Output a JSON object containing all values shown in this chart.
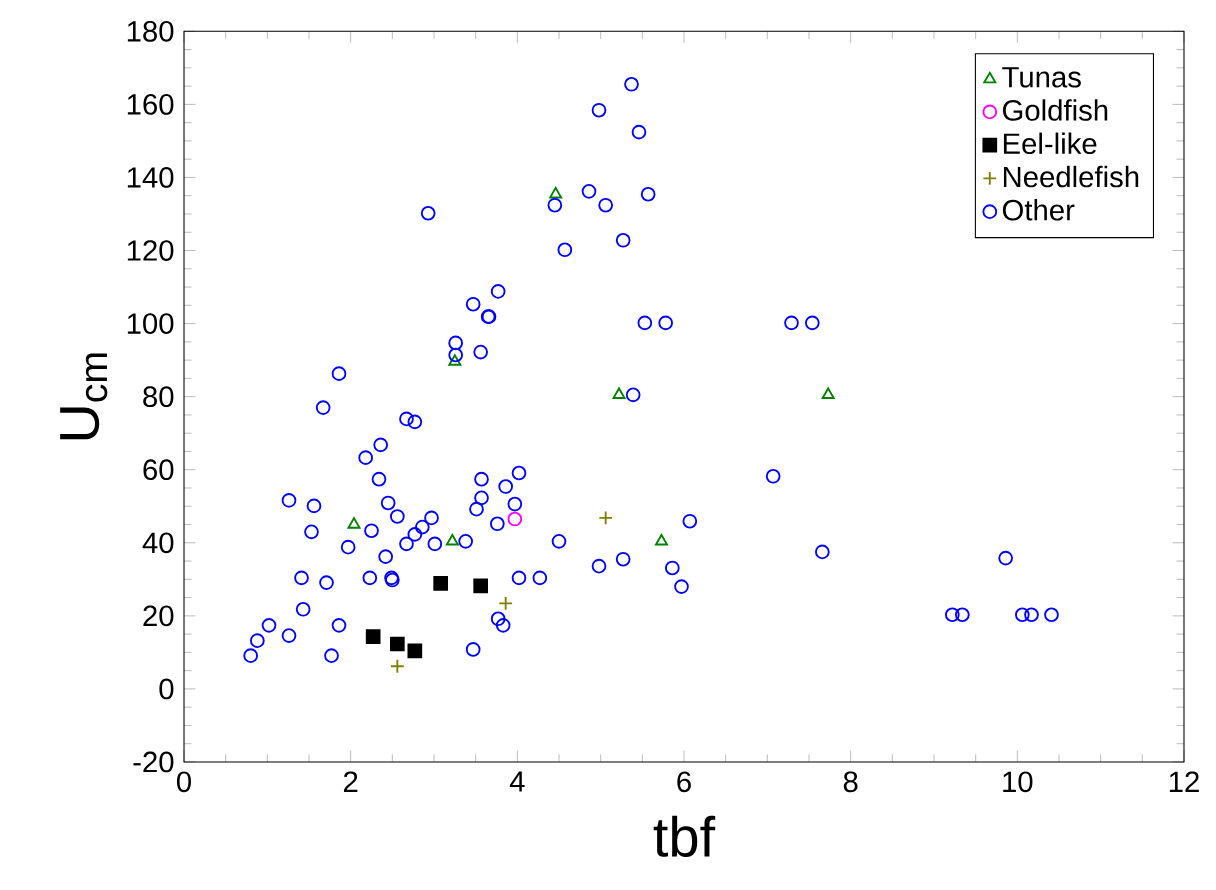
{
  "chart_data": {
    "type": "scatter",
    "xlabel": "tbf",
    "ylabel": "U$_{cm}$",
    "xlim": [
      0,
      12
    ],
    "ylim": [
      -20,
      180
    ],
    "xticks": [
      0,
      2,
      4,
      6,
      8,
      10,
      12
    ],
    "yticks": [
      -20,
      0,
      20,
      40,
      60,
      80,
      100,
      120,
      140,
      160,
      180
    ],
    "grid": false,
    "legend": "top right",
    "series": [
      {
        "name": "Tunas",
        "color": "#008000",
        "marker": "triangle",
        "x": [
          3.25,
          4.46,
          2.04,
          3.22,
          5.22,
          7.73,
          5.73
        ],
        "values": [
          89.6,
          135.4,
          45.0,
          40.4,
          80.5,
          80.5,
          40.4
        ]
      },
      {
        "name": "Goldfish",
        "color": "#ff00ff",
        "marker": "circle",
        "x": [
          3.97
        ],
        "values": [
          46.5
        ]
      },
      {
        "name": "Eel-like",
        "color": "#000000",
        "marker": "square",
        "x": [
          3.08,
          3.56,
          2.27,
          2.56,
          2.77
        ],
        "values": [
          28.9,
          28.2,
          14.3,
          12.3,
          10.4
        ]
      },
      {
        "name": "Needlefish",
        "color": "#808000",
        "marker": "cross",
        "x": [
          3.86,
          2.56,
          5.06
        ],
        "values": [
          23.4,
          6.2,
          46.8
        ]
      },
      {
        "name": "Other",
        "color": "#0000ff",
        "marker": "circle",
        "x": [
          3.26,
          3.26,
          3.56,
          3.66,
          2.93,
          4.45,
          3.47,
          3.77,
          3.65,
          1.86,
          1.67,
          2.67,
          2.77,
          2.36,
          2.18,
          2.34,
          3.57,
          4.02,
          3.86,
          3.57,
          3.51,
          3.97,
          3.76,
          1.26,
          1.56,
          2.45,
          2.56,
          2.25,
          1.53,
          2.97,
          2.86,
          2.77,
          2.67,
          3.01,
          3.38,
          4.5,
          1.97,
          2.42,
          1.41,
          1.71,
          2.23,
          2.49,
          2.5,
          4.02,
          4.27,
          1.43,
          3.77,
          3.83,
          1.02,
          0.88,
          1.26,
          1.86,
          0.8,
          1.77,
          3.47,
          5.37,
          4.98,
          5.46,
          4.86,
          5.06,
          5.57,
          4.57,
          5.27,
          5.53,
          5.78,
          7.29,
          7.54,
          5.39,
          7.07,
          6.07,
          4.98,
          5.27,
          5.86,
          5.97,
          7.66,
          9.86,
          9.22,
          9.34,
          10.06,
          10.17,
          10.41
        ],
        "values": [
          94.7,
          91.4,
          92.2,
          101.9,
          130.2,
          132.4,
          105.3,
          108.8,
          101.9,
          86.3,
          77.0,
          73.9,
          73.1,
          66.8,
          63.3,
          57.4,
          57.4,
          59.1,
          55.4,
          52.3,
          49.2,
          50.6,
          45.2,
          51.6,
          50.1,
          50.9,
          47.2,
          43.3,
          43.0,
          46.8,
          44.3,
          42.3,
          39.7,
          39.7,
          40.4,
          40.4,
          38.8,
          36.2,
          30.4,
          29.1,
          30.4,
          30.4,
          29.8,
          30.4,
          30.4,
          21.8,
          19.2,
          17.4,
          17.4,
          13.2,
          14.6,
          17.4,
          9.1,
          9.1,
          10.8,
          165.5,
          158.4,
          152.4,
          136.2,
          132.4,
          135.4,
          120.2,
          122.8,
          100.2,
          100.2,
          100.2,
          100.2,
          80.5,
          58.2,
          45.9,
          33.6,
          35.5,
          33.1,
          28.0,
          37.5,
          35.8,
          20.3,
          20.3,
          20.3,
          20.3,
          20.3
        ]
      }
    ]
  }
}
